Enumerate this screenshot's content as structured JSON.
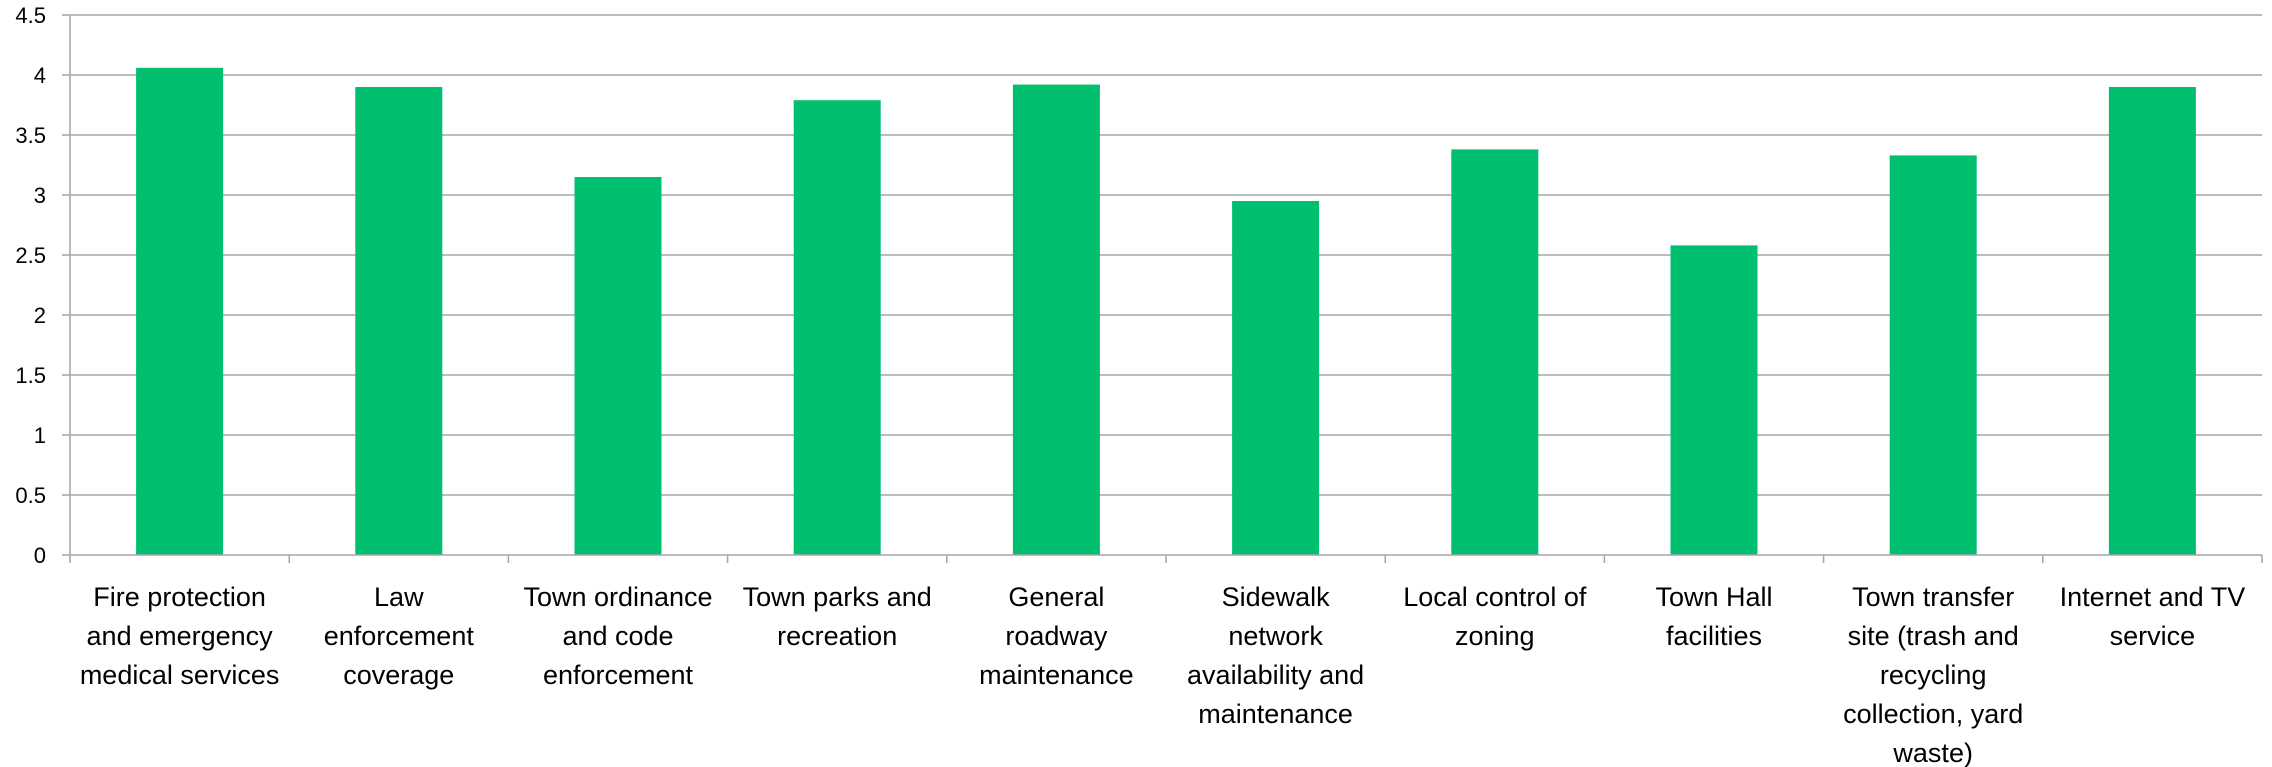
{
  "chart_data": {
    "type": "bar",
    "title": "",
    "xlabel": "",
    "ylabel": "",
    "ylim": [
      0,
      4.5
    ],
    "yticks": [
      "0",
      "0.5",
      "1",
      "1.5",
      "2",
      "2.5",
      "3",
      "3.5",
      "4",
      "4.5"
    ],
    "grid": true,
    "legend": "none",
    "categories": [
      "Fire protection and emergency medical services",
      "Law enforcement coverage",
      "Town ordinance and code enforcement",
      "Town parks and recreation",
      "General roadway maintenance",
      "Sidewalk network availability and maintenance",
      "Local control of zoning",
      "Town Hall facilities",
      "Town transfer site (trash and recycling collection, yard waste)",
      "Internet and TV service"
    ],
    "category_label_lines": [
      [
        "Fire protection",
        "and emergency",
        "medical services"
      ],
      [
        "Law",
        "enforcement",
        "coverage"
      ],
      [
        "Town ordinance",
        "and code",
        "enforcement"
      ],
      [
        "Town parks and",
        "recreation"
      ],
      [
        "General",
        "roadway",
        "maintenance"
      ],
      [
        "Sidewalk",
        "network",
        "availability and",
        "maintenance"
      ],
      [
        "Local control of",
        "zoning"
      ],
      [
        "Town Hall",
        "facilities"
      ],
      [
        "Town transfer",
        "site (trash and",
        "recycling",
        "collection, yard",
        "waste)"
      ],
      [
        "Internet and TV",
        "service"
      ]
    ],
    "values": [
      4.06,
      3.9,
      3.15,
      3.79,
      3.92,
      2.95,
      3.38,
      2.58,
      3.33,
      3.9
    ],
    "colors": {
      "bar": "#00BF6F",
      "grid": "#A6A6A6",
      "axis": "#A6A6A6",
      "text": "#000000"
    }
  }
}
